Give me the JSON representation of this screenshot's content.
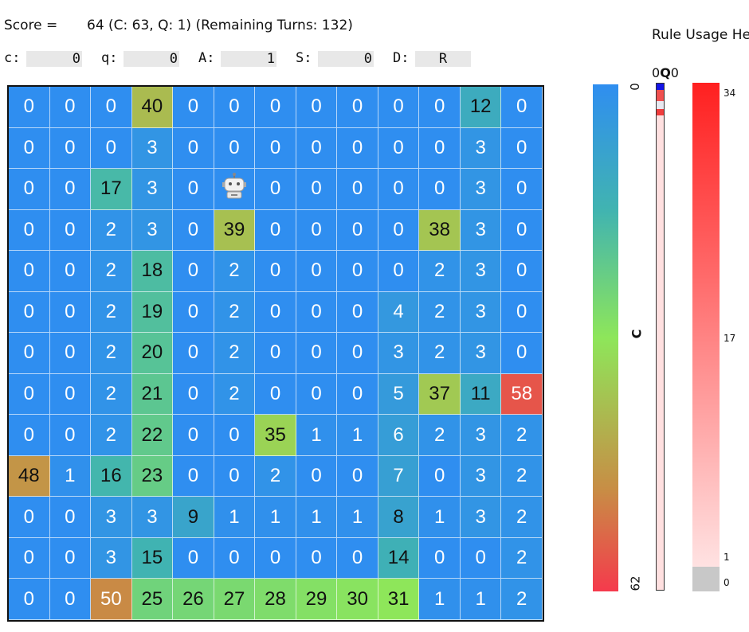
{
  "header": {
    "score_label": "Score =",
    "score_value": "64 (C: 63, Q: 1) (Remaining Turns: 132)",
    "rule_title": "Rule Usage Hea"
  },
  "controls": [
    {
      "label": "c:",
      "value": "0"
    },
    {
      "label": "q:",
      "value": "0"
    },
    {
      "label": "A:",
      "value": "1"
    },
    {
      "label": "S:",
      "value": "0"
    },
    {
      "label": "D:",
      "value": "R"
    }
  ],
  "grid": {
    "rows": 13,
    "cols": 13,
    "cells": [
      [
        "0",
        "0",
        "0",
        "40",
        "0",
        "0",
        "0",
        "0",
        "0",
        "0",
        "0",
        "12",
        "0"
      ],
      [
        "0",
        "0",
        "0",
        "3",
        "0",
        "0",
        "0",
        "0",
        "0",
        "0",
        "0",
        "3",
        "0"
      ],
      [
        "0",
        "0",
        "17",
        "3",
        "0",
        "robot",
        "0",
        "0",
        "0",
        "0",
        "0",
        "3",
        "0"
      ],
      [
        "0",
        "0",
        "2",
        "3",
        "0",
        "39",
        "0",
        "0",
        "0",
        "0",
        "38",
        "3",
        "0"
      ],
      [
        "0",
        "0",
        "2",
        "18",
        "0",
        "2",
        "0",
        "0",
        "0",
        "0",
        "2",
        "3",
        "0"
      ],
      [
        "0",
        "0",
        "2",
        "19",
        "0",
        "2",
        "0",
        "0",
        "0",
        "4",
        "2",
        "3",
        "0"
      ],
      [
        "0",
        "0",
        "2",
        "20",
        "0",
        "2",
        "0",
        "0",
        "0",
        "3",
        "2",
        "3",
        "0"
      ],
      [
        "0",
        "0",
        "2",
        "21",
        "0",
        "2",
        "0",
        "0",
        "0",
        "5",
        "37",
        "11",
        "58"
      ],
      [
        "0",
        "0",
        "2",
        "22",
        "0",
        "0",
        "35",
        "1",
        "1",
        "6",
        "2",
        "3",
        "2"
      ],
      [
        "48",
        "1",
        "16",
        "23",
        "0",
        "0",
        "2",
        "0",
        "0",
        "7",
        "0",
        "3",
        "2"
      ],
      [
        "0",
        "0",
        "3",
        "3",
        "9",
        "1",
        "1",
        "1",
        "1",
        "8",
        "1",
        "3",
        "2"
      ],
      [
        "0",
        "0",
        "3",
        "15",
        "0",
        "0",
        "0",
        "0",
        "0",
        "14",
        "0",
        "0",
        "2"
      ],
      [
        "0",
        "0",
        "50",
        "25",
        "26",
        "27",
        "28",
        "29",
        "30",
        "31",
        "1",
        "1",
        "2"
      ]
    ],
    "robot_icon": "robot-icon"
  },
  "colorbar": {
    "min_label": "0",
    "max_label": "62",
    "axis_label": "C",
    "min": 0,
    "max": 62
  },
  "q_bar": {
    "label_left": "0",
    "label_mid": "Q",
    "label_right": "0"
  },
  "rule_bar": {
    "ticks": [
      "34",
      "17",
      "1",
      "0"
    ]
  }
}
